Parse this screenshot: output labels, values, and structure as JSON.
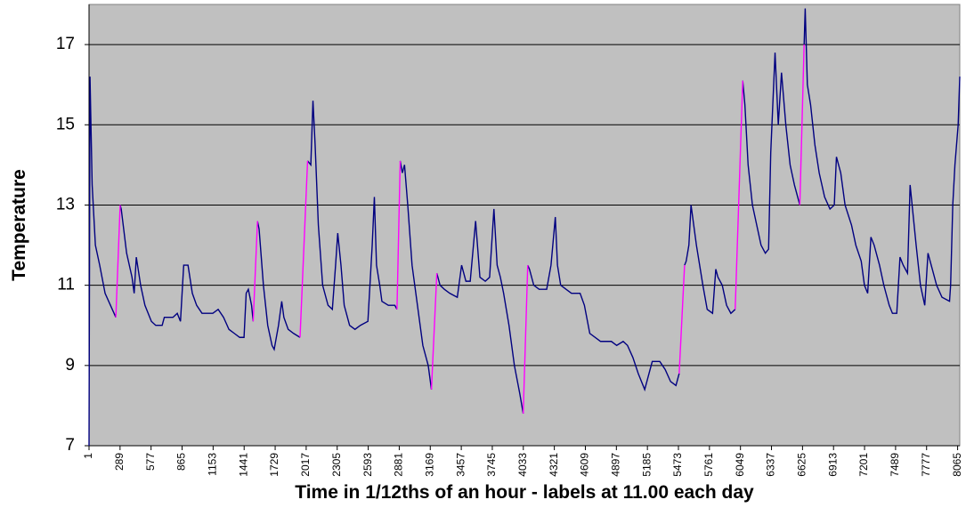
{
  "chart_data": {
    "type": "line",
    "x_label": "Time in 1/12ths of an hour - labels at 11.00 each day",
    "y_label": "Temperature",
    "xlim": [
      1,
      8085
    ],
    "ylim": [
      7,
      18
    ],
    "xticks": [
      1,
      289,
      577,
      865,
      1153,
      1441,
      1729,
      2017,
      2305,
      2593,
      2881,
      3169,
      3457,
      3745,
      4033,
      4321,
      4609,
      4897,
      5185,
      5473,
      5761,
      6049,
      6337,
      6625,
      6913,
      7201,
      7489,
      7777,
      8065
    ],
    "yticks": [
      7,
      9,
      11,
      13,
      15,
      17
    ],
    "grid": true,
    "background": "#c0c0c0",
    "series": [
      {
        "color": "#000080",
        "x": [
          1,
          10,
          30,
          60,
          100,
          150,
          200,
          250,
          null,
          290,
          300,
          350,
          400,
          420,
          440,
          480,
          520,
          580,
          620,
          680,
          700,
          780,
          820,
          850,
          880,
          920,
          960,
          1000,
          1050,
          1150,
          1200,
          1250,
          1300,
          1350,
          1400,
          1440,
          1460,
          1480,
          1510,
          1525,
          null,
          1565,
          1580,
          1620,
          1660,
          1700,
          1720,
          1760,
          1790,
          1810,
          1850,
          1900,
          1960,
          null,
          2030,
          2060,
          2080,
          2100,
          2130,
          2170,
          2220,
          2260,
          2290,
          2310,
          2340,
          2370,
          2420,
          2470,
          2520,
          2590,
          2630,
          2650,
          2670,
          2700,
          2720,
          2780,
          2840,
          2860,
          null,
          2890,
          2910,
          2930,
          2960,
          3000,
          3050,
          3100,
          3150,
          3180,
          null,
          3230,
          3260,
          3300,
          3350,
          3420,
          3460,
          3500,
          3540,
          3590,
          3630,
          3680,
          3720,
          3760,
          3790,
          3820,
          3850,
          3900,
          3950,
          4000,
          4032,
          null,
          4074,
          4090,
          4130,
          4180,
          4250,
          4290,
          4330,
          4350,
          4380,
          4430,
          4480,
          4560,
          4600,
          4650,
          4750,
          4850,
          4900,
          4960,
          5000,
          5050,
          5100,
          5160,
          5200,
          5230,
          5300,
          5350,
          5400,
          5450,
          5480,
          null,
          5530,
          5545,
          5570,
          5590,
          5640,
          5700,
          5740,
          5790,
          5820,
          5840,
          5880,
          5920,
          5960,
          6000,
          null,
          6070,
          6090,
          6120,
          6160,
          6200,
          6240,
          6280,
          6310,
          6330,
          6370,
          6400,
          6430,
          6470,
          6510,
          6550,
          6600,
          null,
          6640,
          6650,
          6670,
          6700,
          6740,
          6780,
          6830,
          6880,
          6920,
          6940,
          6980,
          7020,
          7080,
          7120,
          7170,
          7200,
          7230,
          7260,
          7290,
          7340,
          7380,
          7430,
          7460,
          7500,
          7530,
          7560,
          7600,
          7624,
          7680,
          7720,
          7760,
          7790,
          7830,
          7870,
          7920,
          7990,
          8000,
          8020,
          8040,
          8070,
          8085
        ],
        "values": [
          7,
          16.2,
          13.5,
          12,
          11.5,
          10.8,
          10.5,
          10.2,
          null,
          13,
          12.9,
          11.8,
          11.2,
          10.8,
          11.7,
          11,
          10.5,
          10.1,
          10,
          10,
          10.2,
          10.2,
          10.3,
          10.1,
          11.5,
          11.5,
          10.8,
          10.5,
          10.3,
          10.3,
          10.4,
          10.2,
          9.9,
          9.8,
          9.7,
          9.7,
          10.8,
          10.9,
          10.5,
          10.1,
          null,
          12.6,
          12.4,
          11,
          10,
          9.5,
          9.4,
          10,
          10.6,
          10.2,
          9.9,
          9.8,
          9.7,
          null,
          14.1,
          14,
          15.6,
          14.5,
          12.5,
          11,
          10.5,
          10.4,
          11.5,
          12.3,
          11.5,
          10.5,
          10,
          9.9,
          10,
          10.1,
          12,
          13.2,
          11.5,
          11,
          10.6,
          10.5,
          10.5,
          10.4,
          null,
          14.1,
          13.8,
          14,
          13,
          11.5,
          10.5,
          9.5,
          9,
          8.4,
          null,
          11.3,
          11,
          10.9,
          10.8,
          10.7,
          11.5,
          11.1,
          11.1,
          12.6,
          11.2,
          11.1,
          11.2,
          12.9,
          11.5,
          11.2,
          10.8,
          10,
          9,
          8.3,
          7.8,
          null,
          11.5,
          11.4,
          11,
          10.9,
          10.9,
          11.5,
          12.7,
          11.5,
          11,
          10.9,
          10.8,
          10.8,
          10.5,
          9.8,
          9.6,
          9.6,
          9.5,
          9.6,
          9.5,
          9.2,
          8.8,
          8.4,
          8.8,
          9.1,
          9.1,
          8.9,
          8.6,
          8.5,
          8.8,
          null,
          11.5,
          11.6,
          12,
          13,
          12,
          11,
          10.4,
          10.3,
          11.4,
          11.2,
          11,
          10.5,
          10.3,
          10.4,
          null,
          16.1,
          15.5,
          14,
          13,
          12.5,
          12,
          11.8,
          11.9,
          14.3,
          16.8,
          15,
          16.3,
          15,
          14,
          13.5,
          13,
          null,
          17,
          17.9,
          16,
          15.5,
          14.5,
          13.8,
          13.2,
          12.9,
          13,
          14.2,
          13.8,
          13,
          12.5,
          12,
          11.6,
          11,
          10.8,
          12.2,
          12,
          11.5,
          11,
          10.5,
          10.3,
          10.3,
          11.7,
          11.5,
          11.3,
          13.5,
          12,
          11,
          10.5,
          11.8,
          11.4,
          11,
          10.7,
          10.6,
          11,
          13,
          14,
          15,
          16.2
        ]
      },
      {
        "color": "#ff00ff",
        "x": [
          250,
          290,
          null,
          1525,
          1565,
          null,
          1960,
          2030,
          null,
          2860,
          2890,
          null,
          3180,
          3230,
          null,
          4032,
          4074,
          null,
          5480,
          5530,
          null,
          6000,
          6070,
          null,
          6600,
          6640
        ],
        "values": [
          10.2,
          13,
          null,
          10.1,
          12.6,
          null,
          9.7,
          14.1,
          null,
          10.4,
          14.1,
          null,
          8.4,
          11.3,
          null,
          7.8,
          11.5,
          null,
          8.8,
          11.5,
          null,
          10.4,
          16.1,
          null,
          13,
          17
        ]
      }
    ]
  }
}
